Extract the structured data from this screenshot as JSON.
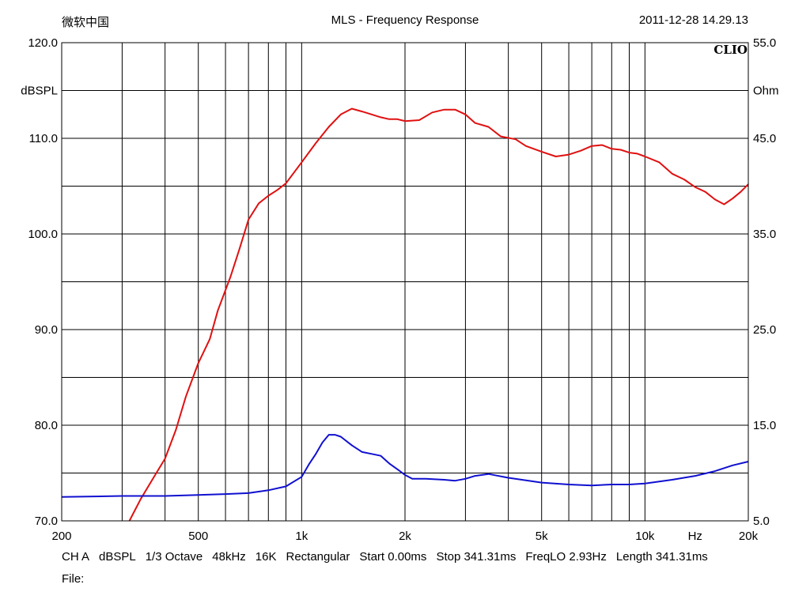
{
  "header": {
    "left": "微软中国",
    "title": "MLS - Frequency Response",
    "timestamp": "2011-12-28 14.29.13"
  },
  "brand": "CLIO",
  "colors": {
    "response": "#e01010",
    "impedance": "#1010d0",
    "grid": "#000000"
  },
  "footer": {
    "items": [
      "CH A",
      "dBSPL",
      "1/3 Octave",
      "48kHz",
      "16K",
      "Rectangular",
      "Start 0.00ms",
      "Stop 341.31ms",
      "FreqLO 2.93Hz",
      "Length 341.31ms"
    ],
    "file_label": "File:"
  },
  "chart_data": {
    "type": "line",
    "title": "MLS - Frequency Response",
    "xscale": "log",
    "xlim": [
      200,
      20000
    ],
    "x_unit_label": "Hz",
    "x_tick_labels": [
      {
        "value": 200,
        "label": "200"
      },
      {
        "value": 500,
        "label": "500"
      },
      {
        "value": 1000,
        "label": "1k"
      },
      {
        "value": 2000,
        "label": "2k"
      },
      {
        "value": 5000,
        "label": "5k"
      },
      {
        "value": 10000,
        "label": "10k"
      },
      {
        "value": 20000,
        "label": "20k"
      }
    ],
    "left_axis": {
      "label": "dBSPL",
      "ylim": [
        70,
        120
      ],
      "tick_labels": [
        {
          "value": 120,
          "label": "120.0"
        },
        {
          "value": 110,
          "label": "110.0"
        },
        {
          "value": 100,
          "label": "100.0"
        },
        {
          "value": 90,
          "label": "90.0"
        },
        {
          "value": 80,
          "label": "80.0"
        },
        {
          "value": 70,
          "label": "70.0"
        }
      ]
    },
    "right_axis": {
      "label": "Ohm",
      "ylim": [
        5,
        55
      ],
      "tick_labels": [
        {
          "value": 55,
          "label": "55.0"
        },
        {
          "value": 45,
          "label": "45.0"
        },
        {
          "value": 35,
          "label": "35.0"
        },
        {
          "value": 25,
          "label": "25.0"
        },
        {
          "value": 15,
          "label": "15.0"
        },
        {
          "value": 5,
          "label": "5.0"
        }
      ]
    },
    "grid": true,
    "series": [
      {
        "axis": "left",
        "color": "#e01010",
        "points": [
          [
            315,
            70.0
          ],
          [
            340,
            72.3
          ],
          [
            370,
            74.5
          ],
          [
            400,
            76.5
          ],
          [
            430,
            79.5
          ],
          [
            460,
            83.0
          ],
          [
            500,
            86.5
          ],
          [
            540,
            89.0
          ],
          [
            570,
            92.0
          ],
          [
            620,
            95.5
          ],
          [
            660,
            98.5
          ],
          [
            700,
            101.5
          ],
          [
            750,
            103.2
          ],
          [
            800,
            104.0
          ],
          [
            850,
            104.6
          ],
          [
            900,
            105.3
          ],
          [
            1000,
            107.5
          ],
          [
            1100,
            109.5
          ],
          [
            1200,
            111.2
          ],
          [
            1300,
            112.5
          ],
          [
            1400,
            113.1
          ],
          [
            1500,
            112.8
          ],
          [
            1600,
            112.5
          ],
          [
            1700,
            112.2
          ],
          [
            1800,
            112.0
          ],
          [
            1900,
            112.0
          ],
          [
            2000,
            111.8
          ],
          [
            2200,
            111.9
          ],
          [
            2400,
            112.7
          ],
          [
            2600,
            113.0
          ],
          [
            2800,
            113.0
          ],
          [
            3000,
            112.5
          ],
          [
            3200,
            111.6
          ],
          [
            3500,
            111.2
          ],
          [
            3800,
            110.2
          ],
          [
            4200,
            109.9
          ],
          [
            4500,
            109.2
          ],
          [
            5000,
            108.6
          ],
          [
            5500,
            108.1
          ],
          [
            6000,
            108.3
          ],
          [
            6500,
            108.7
          ],
          [
            7000,
            109.2
          ],
          [
            7500,
            109.3
          ],
          [
            8000,
            108.9
          ],
          [
            8500,
            108.8
          ],
          [
            9000,
            108.5
          ],
          [
            9500,
            108.4
          ],
          [
            10000,
            108.1
          ],
          [
            11000,
            107.5
          ],
          [
            12000,
            106.3
          ],
          [
            13000,
            105.7
          ],
          [
            14000,
            104.9
          ],
          [
            15000,
            104.4
          ],
          [
            16000,
            103.6
          ],
          [
            17000,
            103.1
          ],
          [
            18000,
            103.7
          ],
          [
            19000,
            104.4
          ],
          [
            20000,
            105.2
          ]
        ]
      },
      {
        "axis": "right",
        "color": "#1010d0",
        "points": [
          [
            200,
            7.5
          ],
          [
            300,
            7.6
          ],
          [
            400,
            7.6
          ],
          [
            500,
            7.7
          ],
          [
            600,
            7.8
          ],
          [
            700,
            7.9
          ],
          [
            800,
            8.2
          ],
          [
            900,
            8.6
          ],
          [
            1000,
            9.6
          ],
          [
            1050,
            10.9
          ],
          [
            1100,
            12.0
          ],
          [
            1150,
            13.2
          ],
          [
            1200,
            14.0
          ],
          [
            1250,
            14.0
          ],
          [
            1300,
            13.8
          ],
          [
            1400,
            12.9
          ],
          [
            1500,
            12.2
          ],
          [
            1600,
            12.0
          ],
          [
            1700,
            11.8
          ],
          [
            1800,
            11.0
          ],
          [
            1900,
            10.4
          ],
          [
            2000,
            9.8
          ],
          [
            2100,
            9.4
          ],
          [
            2300,
            9.4
          ],
          [
            2600,
            9.3
          ],
          [
            2800,
            9.2
          ],
          [
            3000,
            9.4
          ],
          [
            3200,
            9.7
          ],
          [
            3500,
            9.9
          ],
          [
            4000,
            9.5
          ],
          [
            5000,
            9.0
          ],
          [
            6000,
            8.8
          ],
          [
            7000,
            8.7
          ],
          [
            8000,
            8.8
          ],
          [
            9000,
            8.8
          ],
          [
            10000,
            8.9
          ],
          [
            12000,
            9.3
          ],
          [
            14000,
            9.7
          ],
          [
            16000,
            10.2
          ],
          [
            18000,
            10.8
          ],
          [
            20000,
            11.2
          ]
        ]
      }
    ]
  }
}
